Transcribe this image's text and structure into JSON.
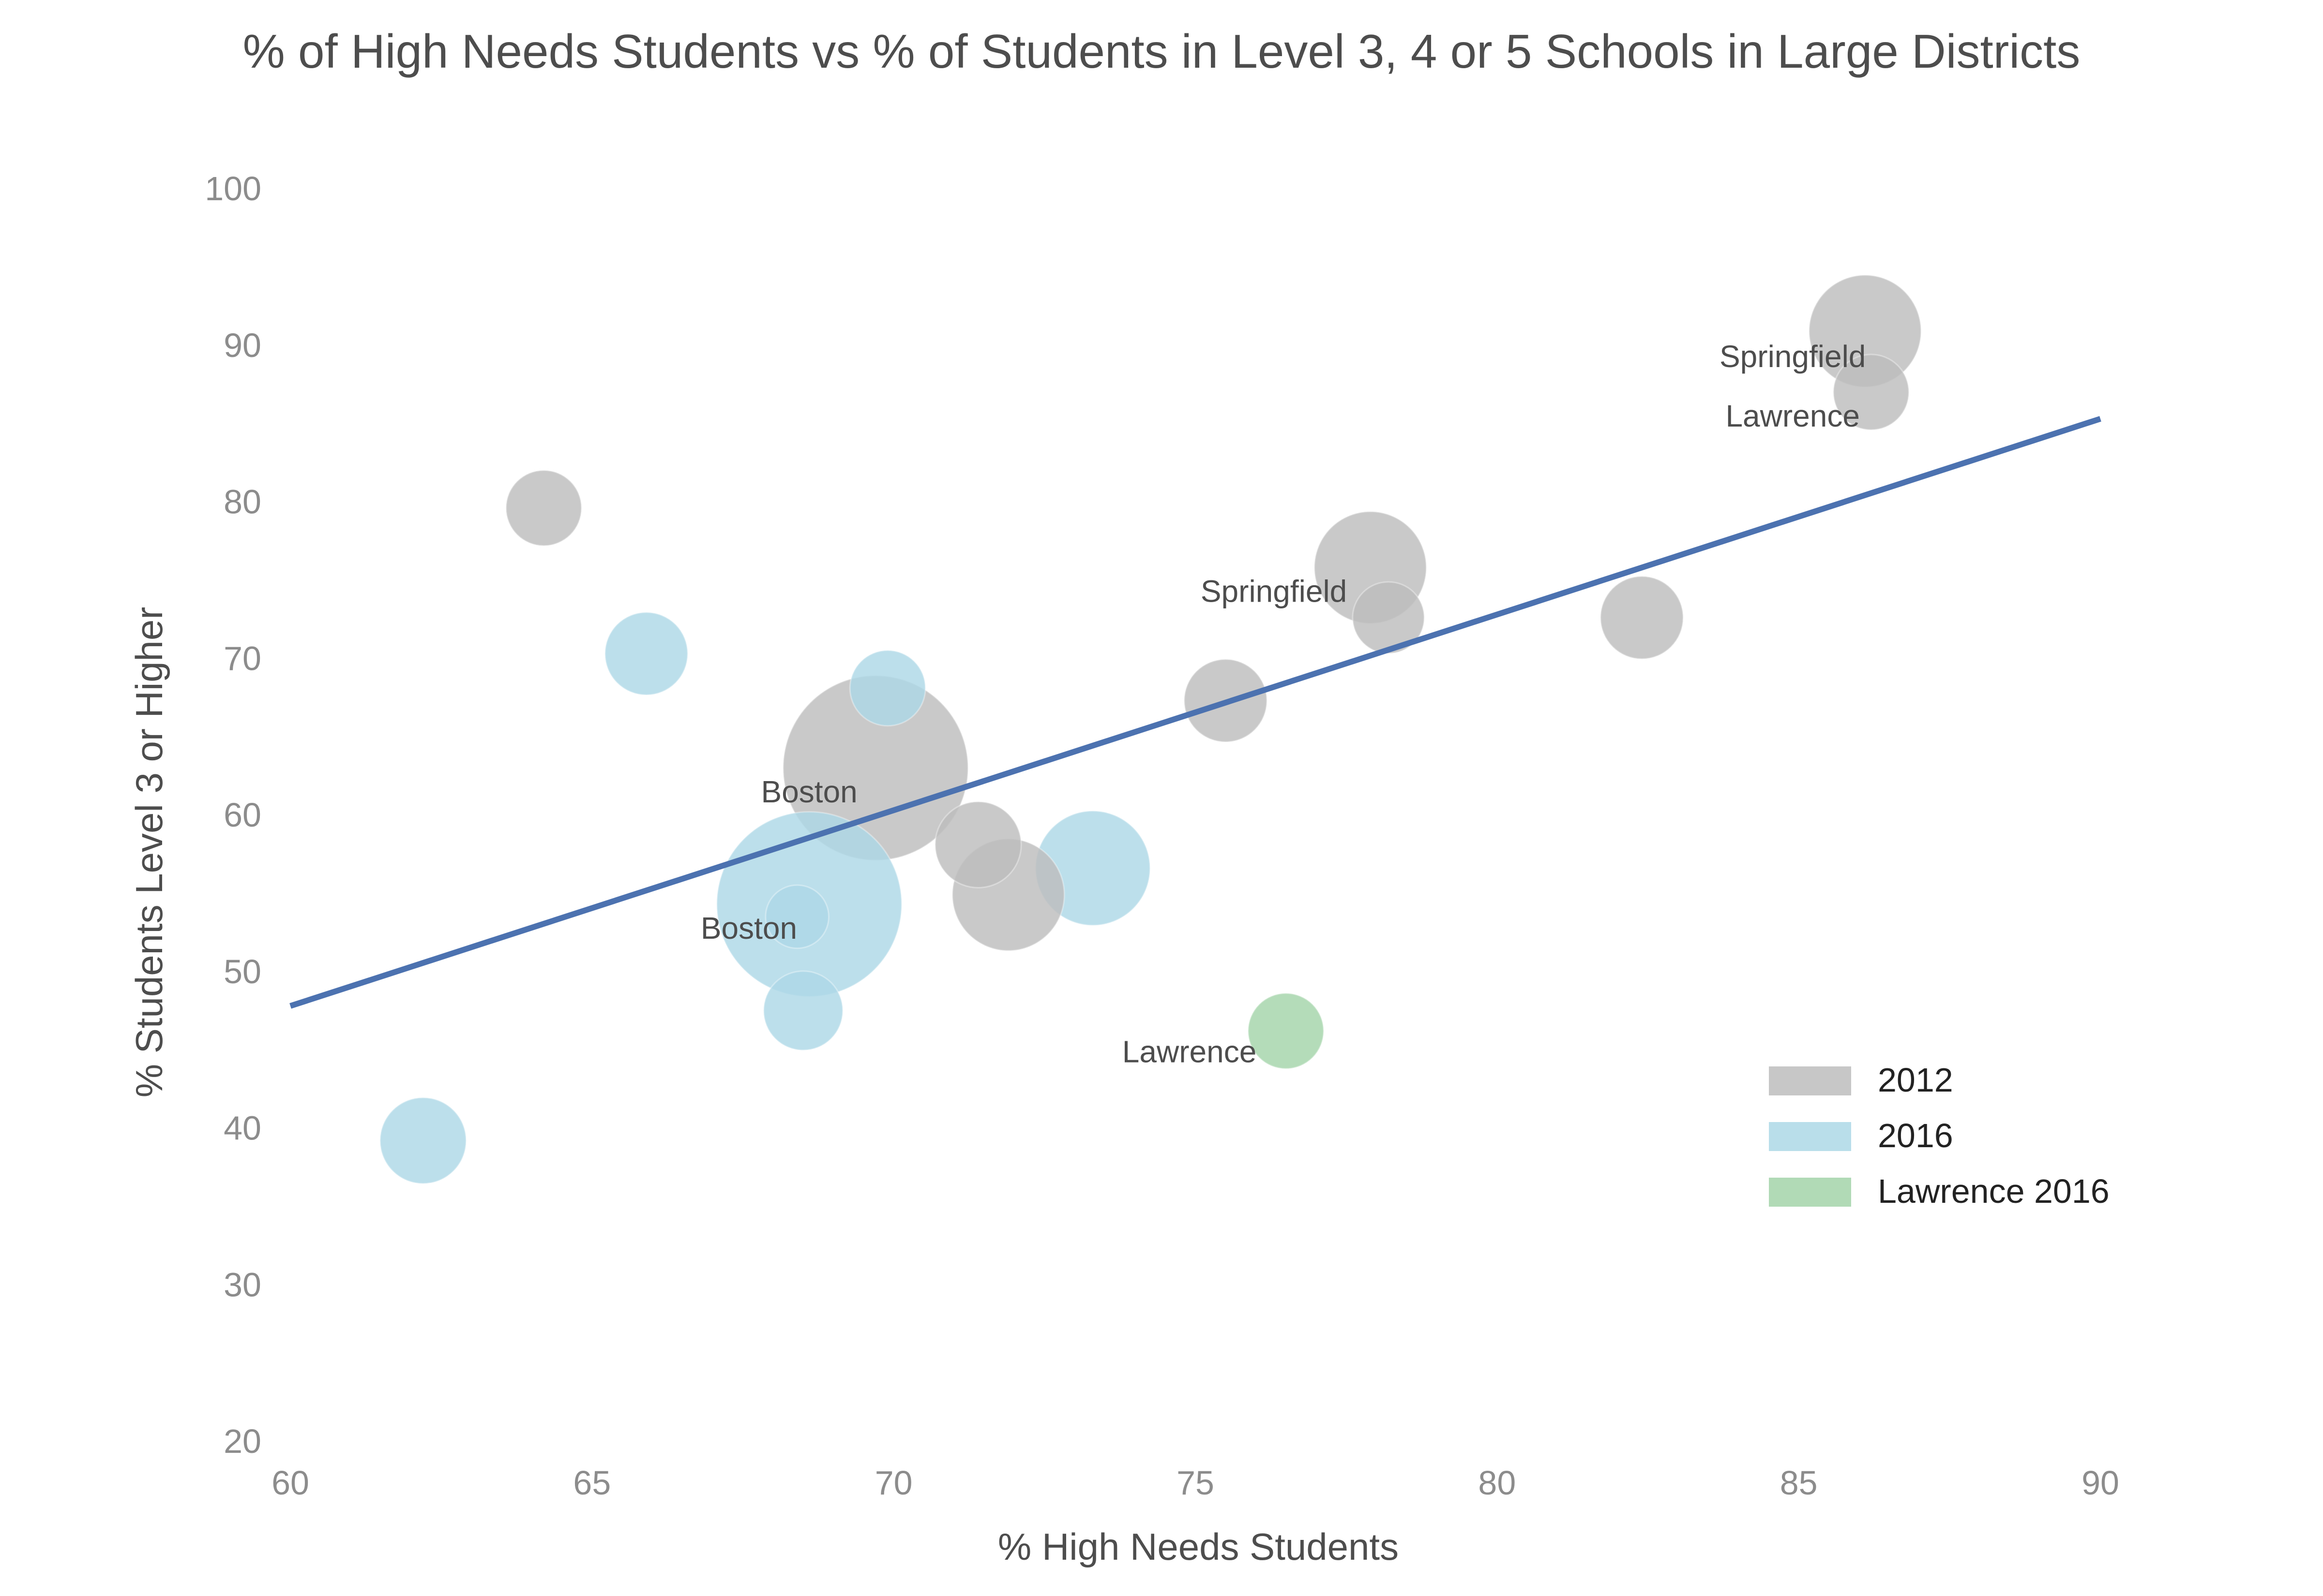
{
  "chart_data": {
    "type": "scatter",
    "title": "% of High Needs Students vs % of Students in Level 3, 4 or 5 Schools in Large Districts",
    "xlabel": "% High Needs Students",
    "ylabel": "% Students Level 3 or Higher",
    "xlim": [
      60,
      90
    ],
    "ylim": [
      20,
      100
    ],
    "xticks": [
      60,
      65,
      70,
      75,
      80,
      85,
      90
    ],
    "yticks": [
      20,
      30,
      40,
      50,
      60,
      70,
      80,
      90,
      100
    ],
    "grid": false,
    "legend_position": "bottom-right",
    "colors": {
      "2012": "#bdbdbd",
      "2016": "#add8e6",
      "Lawrence 2016": "#a3d4a9",
      "trend": "#4c72b0"
    },
    "series": [
      {
        "name": "2012",
        "points": [
          {
            "x": 64.2,
            "y": 79.6,
            "size": 1
          },
          {
            "x": 69.7,
            "y": 63.0,
            "size": 6
          },
          {
            "x": 71.4,
            "y": 58.1,
            "size": 1.3
          },
          {
            "x": 71.9,
            "y": 54.9,
            "size": 2.2
          },
          {
            "x": 75.5,
            "y": 67.3,
            "size": 1.2
          },
          {
            "x": 77.9,
            "y": 75.8,
            "size": 2.2
          },
          {
            "x": 78.2,
            "y": 72.6,
            "size": 0.9
          },
          {
            "x": 82.4,
            "y": 72.6,
            "size": 1.2
          },
          {
            "x": 86.1,
            "y": 90.9,
            "size": 2.2
          },
          {
            "x": 86.2,
            "y": 87.0,
            "size": 1.0
          }
        ]
      },
      {
        "name": "2016",
        "points": [
          {
            "x": 62.2,
            "y": 39.2,
            "size": 1.3
          },
          {
            "x": 65.9,
            "y": 70.3,
            "size": 1.2
          },
          {
            "x": 68.6,
            "y": 54.3,
            "size": 6
          },
          {
            "x": 68.4,
            "y": 53.5,
            "size": 0.7
          },
          {
            "x": 68.5,
            "y": 47.5,
            "size": 1.1
          },
          {
            "x": 69.9,
            "y": 68.1,
            "size": 1.0
          },
          {
            "x": 73.3,
            "y": 56.6,
            "size": 2.3
          }
        ]
      },
      {
        "name": "Lawrence 2016",
        "points": [
          {
            "x": 76.5,
            "y": 46.2,
            "size": 1.0
          }
        ]
      }
    ],
    "trend_line": {
      "x": [
        60,
        90
      ],
      "y": [
        47.8,
        85.3
      ]
    },
    "annotations": [
      {
        "text": "Springfield",
        "x": 84.9,
        "y": 88.6
      },
      {
        "text": "Lawrence",
        "x": 84.9,
        "y": 84.8
      },
      {
        "text": "Springfield",
        "x": 76.3,
        "y": 73.6
      },
      {
        "text": "Boston",
        "x": 68.6,
        "y": 60.8
      },
      {
        "text": "Boston",
        "x": 67.6,
        "y": 52.1
      },
      {
        "text": "Lawrence",
        "x": 74.9,
        "y": 44.2
      }
    ]
  }
}
